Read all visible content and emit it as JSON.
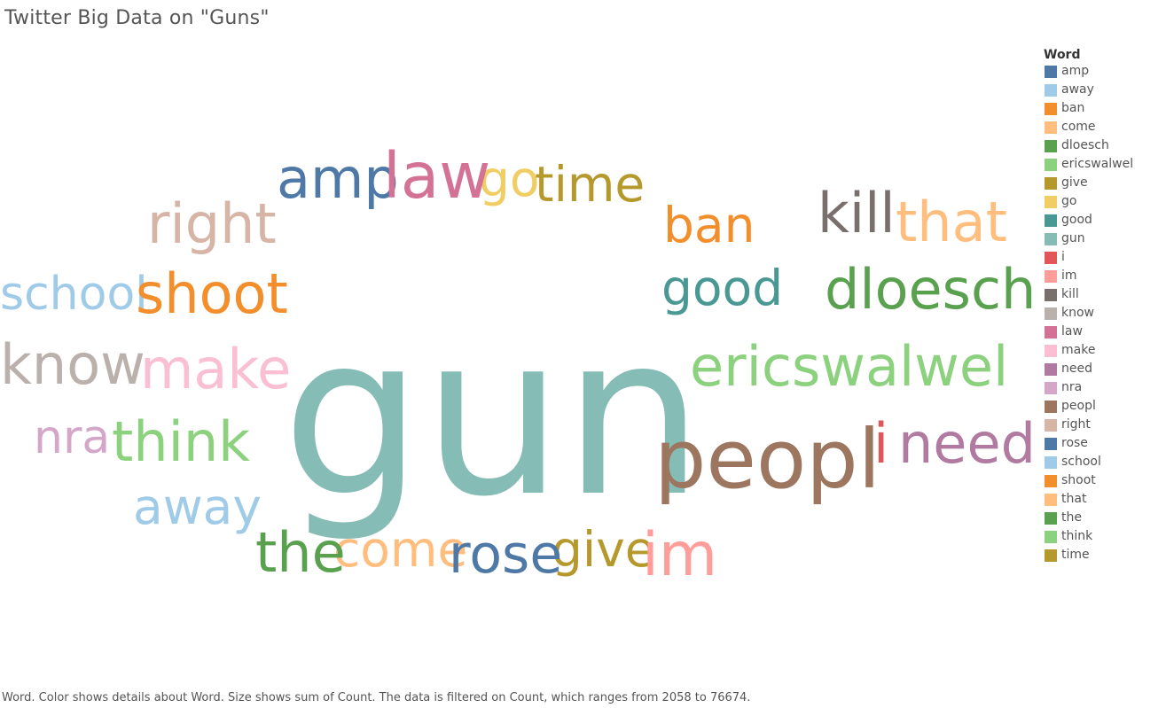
{
  "chart_data": {
    "type": "word_cloud",
    "title": "Twitter Big Data on \"Guns\"",
    "caption": "Word.  Color shows details about Word.  Size shows sum of Count. The data is filtered on Count, which ranges from 2058 to 76674.",
    "legend": {
      "title": "Word",
      "placement": "right"
    },
    "words": [
      {
        "word": "amp",
        "color": "#4e79a7"
      },
      {
        "word": "away",
        "color": "#a0cbe8"
      },
      {
        "word": "ban",
        "color": "#f28e2b"
      },
      {
        "word": "come",
        "color": "#ffbe7d"
      },
      {
        "word": "dloesch",
        "color": "#59a14f"
      },
      {
        "word": "ericswalwel",
        "color": "#8cd17d"
      },
      {
        "word": "give",
        "color": "#b6992d"
      },
      {
        "word": "go",
        "color": "#f1ce63"
      },
      {
        "word": "good",
        "color": "#499894"
      },
      {
        "word": "gun",
        "color": "#86bcb6"
      },
      {
        "word": "i",
        "color": "#e15759"
      },
      {
        "word": "im",
        "color": "#ff9d9a"
      },
      {
        "word": "kill",
        "color": "#79706e"
      },
      {
        "word": "know",
        "color": "#bab0ac"
      },
      {
        "word": "law",
        "color": "#d37295"
      },
      {
        "word": "make",
        "color": "#fabfd2"
      },
      {
        "word": "need",
        "color": "#b07aa1"
      },
      {
        "word": "nra",
        "color": "#d4a6c8"
      },
      {
        "word": "peopl",
        "color": "#9d7660"
      },
      {
        "word": "right",
        "color": "#d7b5a6"
      },
      {
        "word": "rose",
        "color": "#4e79a7"
      },
      {
        "word": "school",
        "color": "#a0cbe8"
      },
      {
        "word": "shoot",
        "color": "#f28e2b"
      },
      {
        "word": "that",
        "color": "#ffbe7d"
      },
      {
        "word": "the",
        "color": "#59a14f"
      },
      {
        "word": "think",
        "color": "#8cd17d"
      },
      {
        "word": "time",
        "color": "#b6992d"
      }
    ]
  }
}
